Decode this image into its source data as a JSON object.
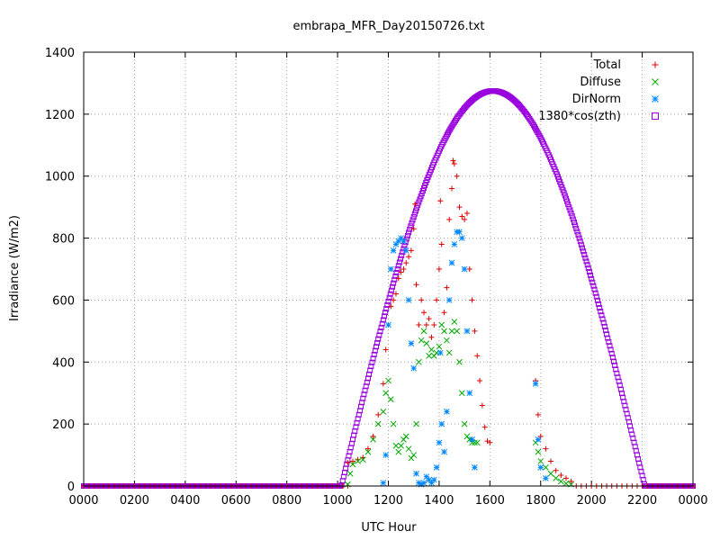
{
  "chart_data": {
    "type": "scatter",
    "title": "embrapa_MFR_Day20150726.txt",
    "xlabel": "UTC Hour",
    "ylabel": "Irradiance (W/m2)",
    "xlim": [
      0,
      24
    ],
    "ylim": [
      0,
      1400
    ],
    "x_ticks": [
      "0000",
      "0200",
      "0400",
      "0600",
      "0800",
      "1000",
      "1200",
      "1400",
      "1600",
      "1800",
      "2000",
      "2200",
      "0000"
    ],
    "y_ticks": [
      "0",
      "200",
      "400",
      "600",
      "800",
      "1000",
      "1200",
      "1400"
    ],
    "grid": true,
    "legend_position": "top-right",
    "series": [
      {
        "name": "Total",
        "marker": "plus",
        "color": "#dd0000",
        "points": [
          [
            10.4,
            75
          ],
          [
            10.6,
            80
          ],
          [
            10.8,
            85
          ],
          [
            11.0,
            92
          ],
          [
            11.2,
            120
          ],
          [
            11.4,
            160
          ],
          [
            11.6,
            230
          ],
          [
            11.8,
            330
          ],
          [
            11.9,
            440
          ],
          [
            12.0,
            520
          ],
          [
            12.1,
            580
          ],
          [
            12.2,
            600
          ],
          [
            12.3,
            620
          ],
          [
            12.4,
            670
          ],
          [
            12.5,
            690
          ],
          [
            12.6,
            700
          ],
          [
            12.7,
            720
          ],
          [
            12.8,
            740
          ],
          [
            12.9,
            760
          ],
          [
            13.0,
            830
          ],
          [
            13.05,
            910
          ],
          [
            13.1,
            650
          ],
          [
            13.2,
            520
          ],
          [
            13.3,
            600
          ],
          [
            13.4,
            560
          ],
          [
            13.5,
            520
          ],
          [
            13.6,
            540
          ],
          [
            13.7,
            480
          ],
          [
            13.8,
            520
          ],
          [
            13.9,
            600
          ],
          [
            14.0,
            700
          ],
          [
            14.05,
            920
          ],
          [
            14.1,
            780
          ],
          [
            14.2,
            560
          ],
          [
            14.3,
            640
          ],
          [
            14.4,
            860
          ],
          [
            14.5,
            960
          ],
          [
            14.55,
            1050
          ],
          [
            14.6,
            1040
          ],
          [
            14.7,
            1000
          ],
          [
            14.8,
            900
          ],
          [
            14.9,
            870
          ],
          [
            15.0,
            860
          ],
          [
            15.1,
            880
          ],
          [
            15.2,
            700
          ],
          [
            15.3,
            600
          ],
          [
            15.4,
            500
          ],
          [
            15.5,
            420
          ],
          [
            15.6,
            340
          ],
          [
            15.7,
            260
          ],
          [
            15.8,
            190
          ],
          [
            15.9,
            145
          ],
          [
            16.0,
            140
          ],
          [
            17.8,
            340
          ],
          [
            17.9,
            230
          ],
          [
            18.0,
            160
          ],
          [
            18.2,
            120
          ],
          [
            18.4,
            80
          ],
          [
            18.6,
            50
          ],
          [
            18.8,
            35
          ],
          [
            19.0,
            25
          ],
          [
            19.2,
            15
          ]
        ]
      },
      {
        "name": "Diffuse",
        "marker": "cross",
        "color": "#00aa00",
        "points": [
          [
            10.4,
            5
          ],
          [
            10.5,
            40
          ],
          [
            10.6,
            70
          ],
          [
            10.8,
            80
          ],
          [
            11.0,
            85
          ],
          [
            11.2,
            110
          ],
          [
            11.4,
            150
          ],
          [
            11.6,
            200
          ],
          [
            11.8,
            240
          ],
          [
            11.9,
            300
          ],
          [
            12.0,
            340
          ],
          [
            12.1,
            280
          ],
          [
            12.2,
            200
          ],
          [
            12.3,
            130
          ],
          [
            12.4,
            110
          ],
          [
            12.5,
            130
          ],
          [
            12.6,
            150
          ],
          [
            12.7,
            160
          ],
          [
            12.8,
            120
          ],
          [
            12.9,
            90
          ],
          [
            13.0,
            100
          ],
          [
            13.1,
            200
          ],
          [
            13.2,
            400
          ],
          [
            13.3,
            470
          ],
          [
            13.4,
            500
          ],
          [
            13.5,
            460
          ],
          [
            13.6,
            420
          ],
          [
            13.7,
            440
          ],
          [
            13.8,
            420
          ],
          [
            13.9,
            430
          ],
          [
            14.0,
            450
          ],
          [
            14.1,
            520
          ],
          [
            14.2,
            500
          ],
          [
            14.3,
            470
          ],
          [
            14.4,
            430
          ],
          [
            14.5,
            500
          ],
          [
            14.6,
            530
          ],
          [
            14.7,
            500
          ],
          [
            14.8,
            400
          ],
          [
            14.9,
            300
          ],
          [
            15.0,
            200
          ],
          [
            15.1,
            160
          ],
          [
            15.2,
            150
          ],
          [
            15.3,
            140
          ],
          [
            15.4,
            140
          ],
          [
            15.5,
            140
          ],
          [
            17.8,
            140
          ],
          [
            17.9,
            110
          ],
          [
            18.0,
            80
          ],
          [
            18.2,
            60
          ],
          [
            18.4,
            40
          ],
          [
            18.6,
            25
          ],
          [
            18.8,
            15
          ],
          [
            19.0,
            8
          ],
          [
            19.2,
            5
          ]
        ]
      },
      {
        "name": "DirNorm",
        "marker": "star",
        "color": "#0088ff",
        "points": [
          [
            11.8,
            10
          ],
          [
            11.9,
            100
          ],
          [
            12.0,
            520
          ],
          [
            12.1,
            700
          ],
          [
            12.2,
            760
          ],
          [
            12.3,
            780
          ],
          [
            12.4,
            790
          ],
          [
            12.5,
            800
          ],
          [
            12.6,
            790
          ],
          [
            12.7,
            760
          ],
          [
            12.8,
            600
          ],
          [
            12.9,
            460
          ],
          [
            13.0,
            380
          ],
          [
            13.1,
            40
          ],
          [
            13.2,
            10
          ],
          [
            13.3,
            5
          ],
          [
            13.4,
            10
          ],
          [
            13.5,
            30
          ],
          [
            13.6,
            20
          ],
          [
            13.7,
            10
          ],
          [
            13.8,
            20
          ],
          [
            13.9,
            60
          ],
          [
            14.0,
            140
          ],
          [
            14.05,
            430
          ],
          [
            14.1,
            200
          ],
          [
            14.2,
            110
          ],
          [
            14.3,
            240
          ],
          [
            14.4,
            600
          ],
          [
            14.5,
            720
          ],
          [
            14.6,
            780
          ],
          [
            14.7,
            820
          ],
          [
            14.8,
            820
          ],
          [
            14.9,
            800
          ],
          [
            15.0,
            700
          ],
          [
            15.1,
            500
          ],
          [
            15.2,
            300
          ],
          [
            15.3,
            150
          ],
          [
            15.4,
            60
          ],
          [
            17.8,
            330
          ],
          [
            17.9,
            150
          ],
          [
            18.0,
            60
          ],
          [
            18.2,
            25
          ]
        ]
      },
      {
        "name": "1380*cos(zth)",
        "marker": "square",
        "color": "#9900dd",
        "curve": {
          "sunrise": 10.15,
          "sunset": 22.1,
          "peak_value": 1275
        }
      }
    ]
  }
}
